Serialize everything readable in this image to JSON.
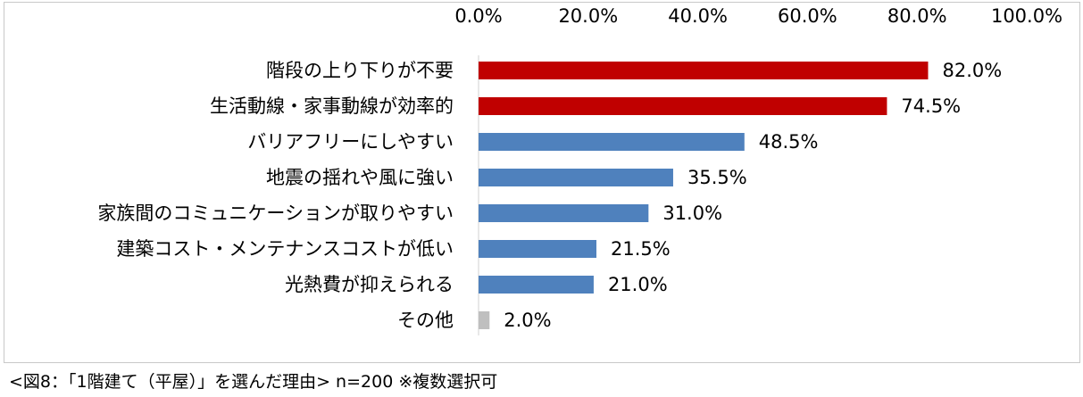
{
  "caption": "<図8：「1階建て（平屋）」を選んだ理由> n=200 ※複数選択可",
  "chart_data": {
    "type": "bar",
    "orientation": "horizontal",
    "x_axis_position": "top",
    "xlim": [
      0,
      100
    ],
    "x_ticks": [
      "0.0%",
      "20.0%",
      "40.0%",
      "60.0%",
      "80.0%",
      "100.0%"
    ],
    "grid": false,
    "categories": [
      "階段の上り下りが不要",
      "生活動線・家事動線が効率的",
      "バリアフリーにしやすい",
      "地震の揺れや風に強い",
      "家族間のコミュニケーションが取りやすい",
      "建築コスト・メンテナンスコストが低い",
      "光熱費が抑えられる",
      "その他"
    ],
    "values": [
      82.0,
      74.5,
      48.5,
      35.5,
      31.0,
      21.5,
      21.0,
      2.0
    ],
    "labels": [
      "82.0%",
      "74.5%",
      "48.5%",
      "35.5%",
      "31.0%",
      "21.5%",
      "21.0%",
      "2.0%"
    ],
    "colors": [
      "#c00000",
      "#c00000",
      "#4f81bd",
      "#4f81bd",
      "#4f81bd",
      "#4f81bd",
      "#4f81bd",
      "#bfbfbf"
    ]
  }
}
